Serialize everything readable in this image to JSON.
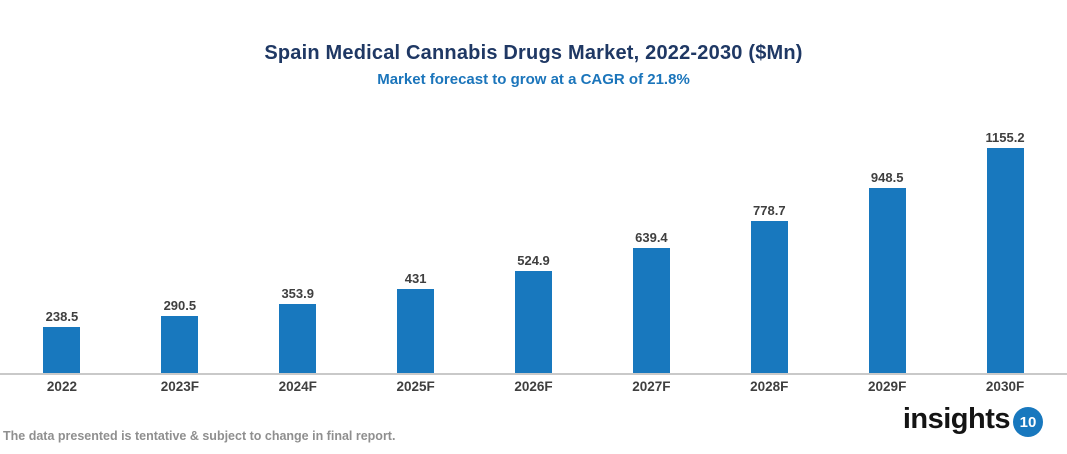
{
  "header": {
    "title": "Spain Medical Cannabis Drugs Market, 2022-2030 ($Mn)",
    "subtitle": "Market forecast to grow at a CAGR of 21.8%"
  },
  "chart_data": {
    "type": "bar",
    "categories": [
      "2022",
      "2023F",
      "2024F",
      "2025F",
      "2026F",
      "2027F",
      "2028F",
      "2029F",
      "2030F"
    ],
    "values": [
      238.5,
      290.5,
      353.9,
      431,
      524.9,
      639.4,
      778.7,
      948.5,
      1155.2
    ],
    "value_labels": [
      "238.5",
      "290.5",
      "353.9",
      "431",
      "524.9",
      "639.4",
      "778.7",
      "948.5",
      "1155.2"
    ],
    "title": "Spain Medical Cannabis Drugs Market, 2022-2030 ($Mn)",
    "subtitle": "Market forecast to grow at a CAGR of 21.8%",
    "xlabel": "",
    "ylabel": "",
    "ylim": [
      0,
      1250
    ],
    "grid": false,
    "legend": false,
    "bar_color": "#1878BE"
  },
  "colors": {
    "title": "#1F3864",
    "subtitle": "#1B75BB",
    "bar": "#1878BE",
    "value_label": "#3F3F3F",
    "axis_line": "#C9C9C9",
    "footer_text": "#8F8F8F",
    "logo_text": "#141414",
    "logo_circle": "#1878BE"
  },
  "footer": {
    "note": "The data presented is tentative & subject to change in final report.",
    "logo_word": "insights",
    "logo_number": "10"
  }
}
